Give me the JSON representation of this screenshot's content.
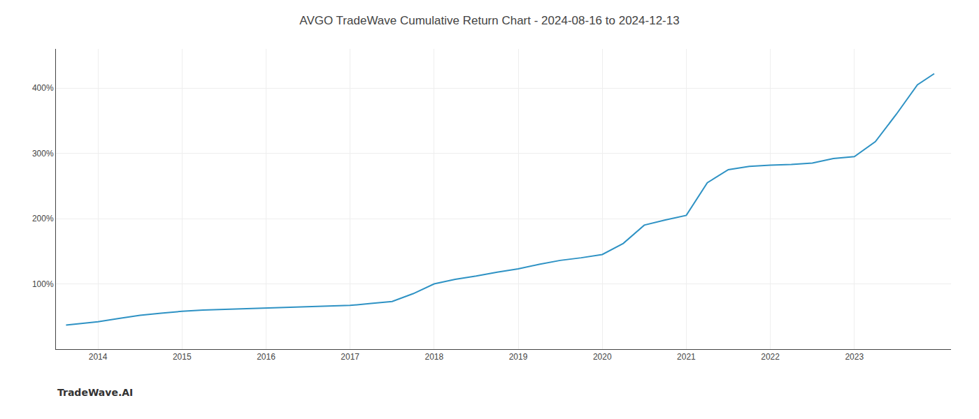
{
  "chart_data": {
    "type": "line",
    "title": "AVGO TradeWave Cumulative Return Chart - 2024-08-16 to 2024-12-13",
    "annotations": [
      "TradeWave.AI"
    ],
    "color": "#2e92c4",
    "grid": true,
    "x": [
      2013.62,
      2014.0,
      2014.25,
      2014.5,
      2014.75,
      2015.0,
      2015.25,
      2015.5,
      2015.75,
      2016.0,
      2016.25,
      2016.5,
      2016.75,
      2017.0,
      2017.25,
      2017.5,
      2017.75,
      2018.0,
      2018.25,
      2018.5,
      2018.75,
      2019.0,
      2019.25,
      2019.5,
      2019.75,
      2020.0,
      2020.25,
      2020.5,
      2020.75,
      2021.0,
      2021.25,
      2021.5,
      2021.75,
      2022.0,
      2022.25,
      2022.5,
      2022.75,
      2023.0,
      2023.25,
      2023.5,
      2023.75,
      2023.95
    ],
    "values": [
      37,
      42,
      47,
      52,
      55,
      58,
      60,
      61,
      62,
      63,
      64,
      65,
      66,
      67,
      70,
      73,
      85,
      100,
      107,
      112,
      118,
      123,
      130,
      136,
      140,
      145,
      162,
      190,
      198,
      205,
      255,
      275,
      280,
      282,
      283,
      285,
      292,
      295,
      318,
      360,
      405,
      422
    ],
    "xlim": [
      2013.5,
      2024.15
    ],
    "xticks": [
      2014,
      2015,
      2016,
      2017,
      2018,
      2019,
      2020,
      2021,
      2022,
      2023
    ],
    "ylim": [
      0,
      460
    ],
    "yticks": [
      {
        "value": 100,
        "label": "100%"
      },
      {
        "value": 200,
        "label": "200%"
      },
      {
        "value": 300,
        "label": "300%"
      },
      {
        "value": 400,
        "label": "400%"
      }
    ]
  }
}
